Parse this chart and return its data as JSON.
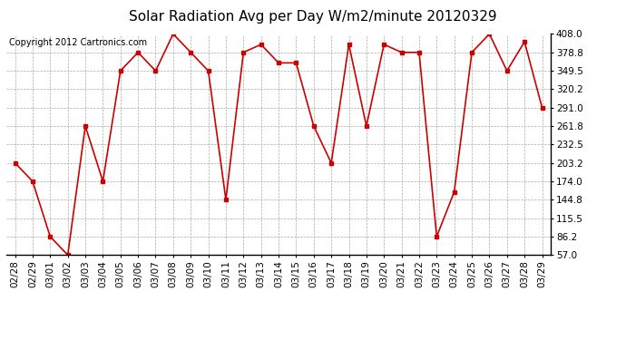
{
  "title": "Solar Radiation Avg per Day W/m2/minute 20120329",
  "copyright": "Copyright 2012 Cartronics.com",
  "dates": [
    "02/28",
    "02/29",
    "03/01",
    "03/02",
    "03/03",
    "03/04",
    "03/05",
    "03/06",
    "03/07",
    "03/08",
    "03/09",
    "03/10",
    "03/11",
    "03/12",
    "03/13",
    "03/14",
    "03/15",
    "03/16",
    "03/17",
    "03/18",
    "03/19",
    "03/20",
    "03/21",
    "03/22",
    "03/23",
    "03/24",
    "03/25",
    "03/26",
    "03/27",
    "03/28",
    "03/29"
  ],
  "values": [
    203.2,
    174.0,
    86.2,
    57.0,
    261.8,
    174.0,
    349.5,
    378.8,
    349.5,
    408.0,
    378.8,
    349.5,
    144.8,
    378.8,
    391.4,
    362.1,
    362.1,
    261.8,
    203.2,
    391.4,
    261.8,
    391.4,
    378.8,
    378.8,
    86.2,
    157.4,
    378.8,
    408.0,
    349.5,
    395.7,
    291.0
  ],
  "ylim": [
    57.0,
    408.0
  ],
  "yticks": [
    57.0,
    86.2,
    115.5,
    144.8,
    174.0,
    203.2,
    232.5,
    261.8,
    291.0,
    320.2,
    349.5,
    378.8,
    408.0
  ],
  "line_color": "#cc0000",
  "marker": "s",
  "marker_size": 3,
  "bg_color": "#ffffff",
  "grid_color": "#aaaaaa",
  "title_fontsize": 11,
  "tick_fontsize": 7.5,
  "copyright_fontsize": 7
}
